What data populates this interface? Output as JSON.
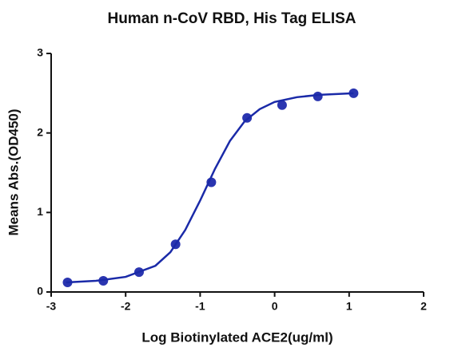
{
  "chart_data": {
    "type": "scatter",
    "title": "Human n-CoV RBD, His Tag ELISA",
    "x_label": "Log Biotinylated ACE2(ug/ml)",
    "y_label": "Means Abs.(OD450)",
    "series": [
      {
        "type": "scatter",
        "color": "#2a35b0",
        "x": [
          -2.78,
          -2.3,
          -1.82,
          -1.33,
          -0.85,
          -0.37,
          0.1,
          0.58,
          1.06
        ],
        "values": [
          0.12,
          0.14,
          0.25,
          0.6,
          1.38,
          2.19,
          2.35,
          2.46,
          2.5
        ]
      },
      {
        "type": "line",
        "color": "#1a2aa8",
        "x": [
          -2.8,
          -2.4,
          -2.0,
          -1.6,
          -1.4,
          -1.2,
          -1.0,
          -0.8,
          -0.6,
          -0.4,
          -0.2,
          0,
          0.3,
          0.6,
          1.06
        ],
        "values": [
          0.12,
          0.14,
          0.19,
          0.33,
          0.5,
          0.78,
          1.15,
          1.55,
          1.9,
          2.15,
          2.3,
          2.39,
          2.45,
          2.48,
          2.5
        ]
      }
    ],
    "xlim": [
      -3,
      2
    ],
    "ylim": [
      0,
      3
    ],
    "xticks": [
      -3,
      -2,
      -1,
      0,
      1,
      2
    ],
    "yticks": [
      0,
      1,
      2,
      3
    ],
    "grid": false
  }
}
